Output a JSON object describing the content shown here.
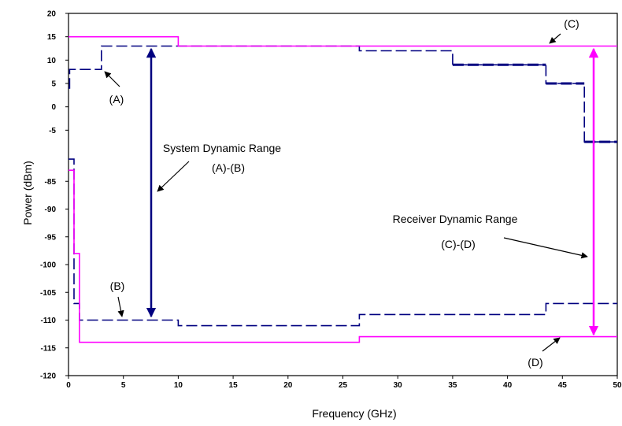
{
  "chart_data": {
    "type": "line",
    "xlabel": "Frequency (GHz)",
    "ylabel": "Power (dBm)",
    "xlim": [
      0,
      50
    ],
    "x_ticks": [
      0,
      5,
      10,
      15,
      20,
      25,
      30,
      35,
      40,
      45,
      50
    ],
    "upper_panel": {
      "ylim": [
        -10,
        20
      ],
      "y_ticks": [
        20,
        15,
        10,
        5,
        0,
        -5
      ]
    },
    "lower_panel": {
      "ylim": [
        -120,
        -80
      ],
      "y_ticks": [
        -85,
        -90,
        -95,
        -100,
        -105,
        -110,
        -115,
        -120
      ]
    },
    "grid": false,
    "legend": "none",
    "colors": {
      "magenta": "#ff00ff",
      "navy": "#000080"
    },
    "series": [
      {
        "label": "(A)",
        "color": "#000080",
        "dash": "dashed",
        "panel": "upper",
        "x": [
          0,
          0.1,
          0.1,
          3,
          3,
          26.5,
          26.5,
          35,
          35,
          43.5,
          43.5,
          47,
          47,
          50
        ],
        "y": [
          4,
          4,
          8,
          8,
          13,
          13,
          12,
          12,
          9,
          9,
          5,
          5,
          -7.5,
          -7.5
        ]
      },
      {
        "label": "(C)",
        "color": "#ff00ff",
        "dash": "solid",
        "panel": "upper",
        "x": [
          0,
          10,
          10,
          50
        ],
        "y": [
          15,
          15,
          13,
          13
        ]
      },
      {
        "label": "(B)",
        "color": "#000080",
        "dash": "dashed",
        "panel": "lower",
        "x": [
          0,
          0.5,
          0.5,
          1,
          1,
          10,
          10,
          26.5,
          26.5,
          43.5,
          43.5,
          50
        ],
        "y": [
          -81,
          -81,
          -107,
          -107,
          -110,
          -110,
          -111,
          -111,
          -109,
          -109,
          -107,
          -107
        ],
        "drop_at_x": 0.5
      },
      {
        "label": "(D)",
        "color": "#ff00ff",
        "dash": "solid",
        "panel": "lower",
        "x": [
          0,
          0.5,
          0.5,
          1,
          1,
          26.5,
          26.5,
          50
        ],
        "y": [
          -83,
          -83,
          -98,
          -98,
          -114,
          -114,
          -113,
          -113
        ]
      }
    ],
    "annotations": [
      {
        "label_top": "System Dynamic Range",
        "label_bottom": "(A)-(B)"
      },
      {
        "label_top": "Receiver Dynamic Range",
        "label_bottom": "(C)-(D)"
      },
      {
        "label": "(A)"
      },
      {
        "label": "(B)"
      },
      {
        "label": "(C)"
      },
      {
        "label": "(D)"
      }
    ]
  }
}
